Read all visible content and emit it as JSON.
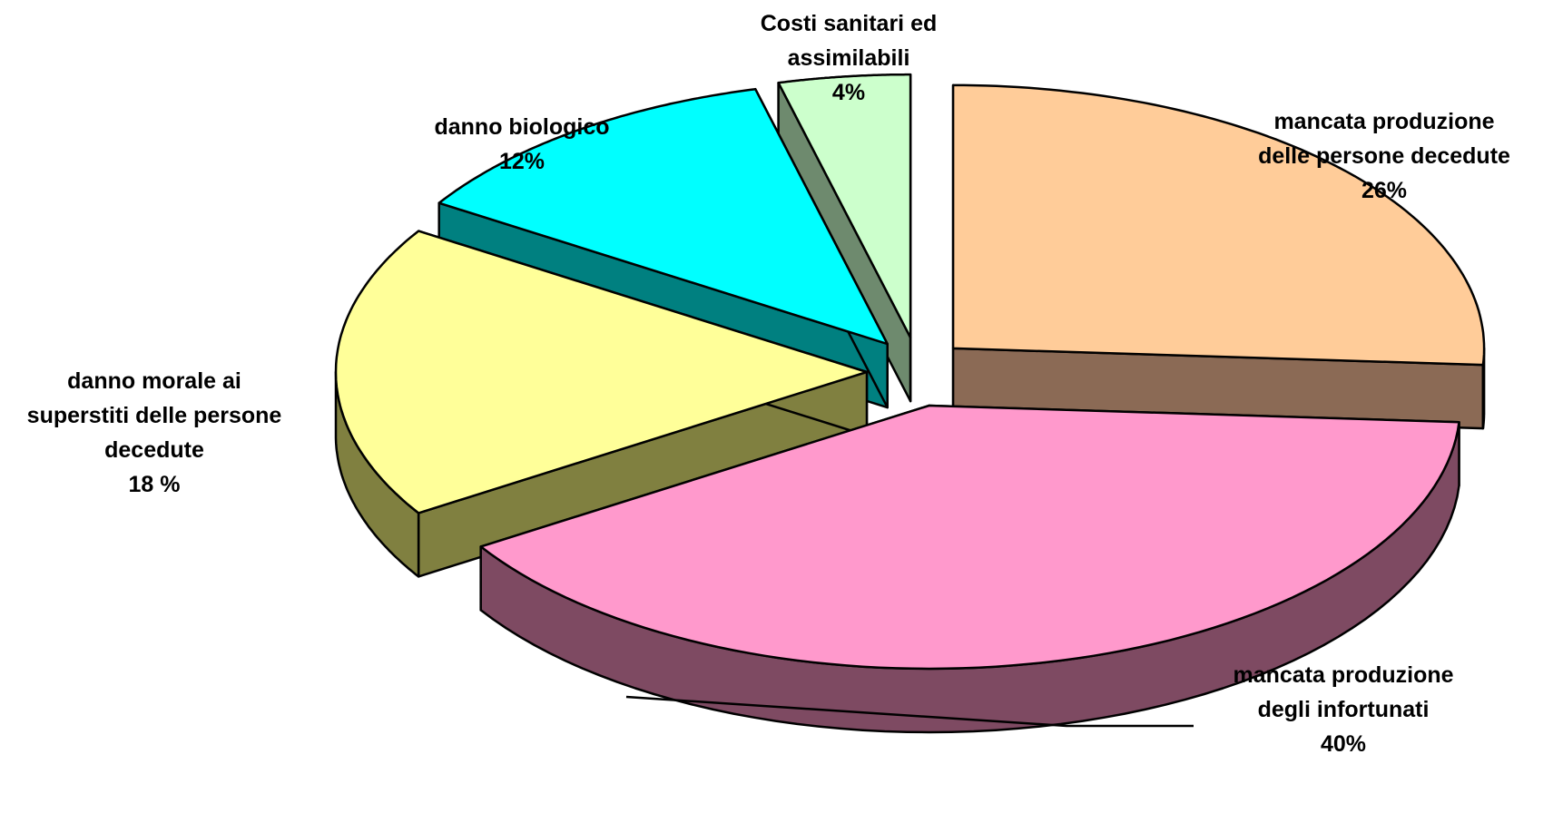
{
  "chart_data": {
    "type": "pie",
    "variant": "3d-exploded",
    "title": "",
    "unit": "%",
    "slices": [
      {
        "label_lines": [
          "mancata produzione",
          "delle persone decedute"
        ],
        "value": 26,
        "value_label": "26%",
        "top_color": "#FFCC99",
        "side_color": "#8B6A55"
      },
      {
        "label_lines": [
          "mancata produzione",
          "degli infortunati"
        ],
        "value": 40,
        "value_label": "40%",
        "top_color": "#FF99CC",
        "side_color": "#7E4A62"
      },
      {
        "label_lines": [
          "danno morale ai",
          "superstiti delle persone",
          "decedute"
        ],
        "value": 18,
        "value_label": "18 %",
        "top_color": "#FFFF99",
        "side_color": "#808040"
      },
      {
        "label_lines": [
          "danno biologico"
        ],
        "value": 12,
        "value_label": "12%",
        "top_color": "#00FFFF",
        "side_color": "#008080"
      },
      {
        "label_lines": [
          "Costi sanitari ed",
          "assimilabili"
        ],
        "value": 4,
        "value_label": "4%",
        "top_color": "#CCFFCC",
        "side_color": "#6E8A6E"
      }
    ]
  }
}
